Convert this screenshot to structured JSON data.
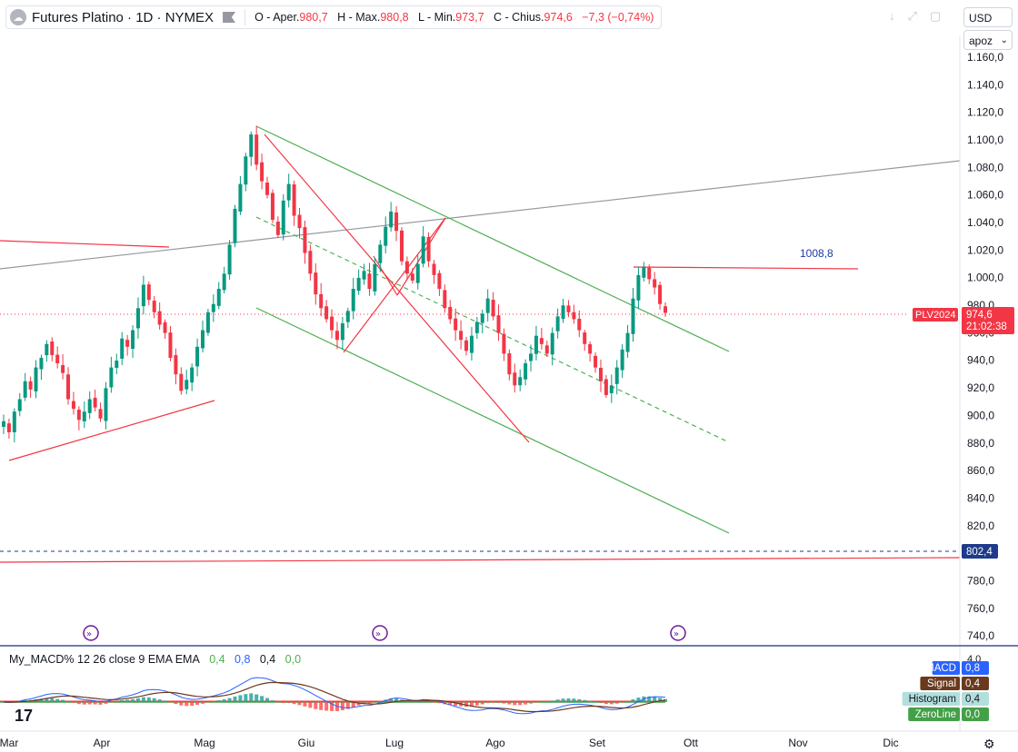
{
  "header": {
    "logo": "platinum-logo-icon",
    "title": "Futures Platino · 1D · NYMEX",
    "flag_icon": "flag-icon",
    "ohlc": [
      {
        "label": "O - Aper.",
        "value": "980,7"
      },
      {
        "label": "H - Max.",
        "value": "980,8"
      },
      {
        "label": "L - Min.",
        "value": "973,7"
      },
      {
        "label": "C - Chius.",
        "value": "974,6"
      }
    ],
    "change": "−7,3 (−0,74%)",
    "icons": [
      "download-icon",
      "fullscreen-icon",
      "square-icon"
    ],
    "currency": "USD",
    "scale": "apoz"
  },
  "colors": {
    "up": "#089981",
    "down": "#f23645",
    "green_line": "#4caf50",
    "red_line": "#f23645",
    "gray_line": "#9598a1",
    "macd": "#2962ff",
    "signal": "#6b3a1e",
    "hist_up": "#26a69a",
    "hist_down": "#ff5252",
    "zero": "#43a047"
  },
  "chart_data": [
    {
      "type": "candlestick",
      "title": "Futures Platino · 1D · NYMEX",
      "x_tick_labels": [
        "Mar",
        "Apr",
        "Mag",
        "Giu",
        "Lug",
        "Ago",
        "Set",
        "Ott",
        "Nov",
        "Dic"
      ],
      "y_tick_labels": [
        "1.160,0",
        "1.140,0",
        "1.120,0",
        "1.100,0",
        "1.080,0",
        "1.060,0",
        "1.040,0",
        "1.020,0",
        "1.000,0",
        "980,0",
        "960,0",
        "940,0",
        "920,0",
        "900,0",
        "880,0",
        "860,0",
        "840,0",
        "820,0",
        "800,0",
        "780,0",
        "760,0",
        "740,0"
      ],
      "ylim": [
        735,
        1168
      ],
      "grid": false,
      "close_series": [
        896,
        888,
        903,
        912,
        925,
        919,
        935,
        942,
        952,
        944,
        938,
        931,
        912,
        905,
        897,
        903,
        912,
        906,
        898,
        920,
        935,
        940,
        956,
        950,
        962,
        978,
        995,
        984,
        975,
        966,
        960,
        942,
        930,
        918,
        926,
        935,
        950,
        962,
        975,
        981,
        992,
        1003,
        1024,
        1050,
        1068,
        1088,
        1104,
        1082,
        1070,
        1060,
        1042,
        1031,
        1056,
        1068,
        1045,
        1036,
        1018,
        1003,
        988,
        978,
        970,
        962,
        955,
        967,
        976,
        992,
        1000,
        1005,
        992,
        1010,
        1024,
        1037,
        1048,
        1034,
        1012,
        1003,
        998,
        1010,
        1030,
        1012,
        1002,
        992,
        978,
        970,
        962,
        955,
        947,
        958,
        968,
        974,
        985,
        972,
        960,
        945,
        930,
        922,
        928,
        938,
        945,
        958,
        952,
        945,
        960,
        972,
        980,
        975,
        970,
        962,
        952,
        945,
        935,
        925,
        915,
        922,
        935,
        948,
        960,
        985,
        1002,
        1008,
        999,
        993,
        981,
        974.6
      ],
      "last_price": {
        "label": "PLV2024",
        "value": "974,6",
        "countdown": "21:02:38"
      },
      "horizontal_level": {
        "value": "802,4"
      },
      "annotation": "1008,8"
    },
    {
      "type": "bar",
      "title": "My_MACD% 12 26 close 9 EMA EMA",
      "legend_values": [
        "0,4",
        "0,8",
        "0,4",
        "0,0"
      ],
      "y_tick_labels": [
        "4,0"
      ],
      "labels": [
        {
          "name": "MACD",
          "value": "0,8"
        },
        {
          "name": "Signal",
          "value": "0,4"
        },
        {
          "name": "Histogram",
          "value": "0,4"
        },
        {
          "name": "ZeroLine",
          "value": "0,0"
        }
      ]
    }
  ]
}
